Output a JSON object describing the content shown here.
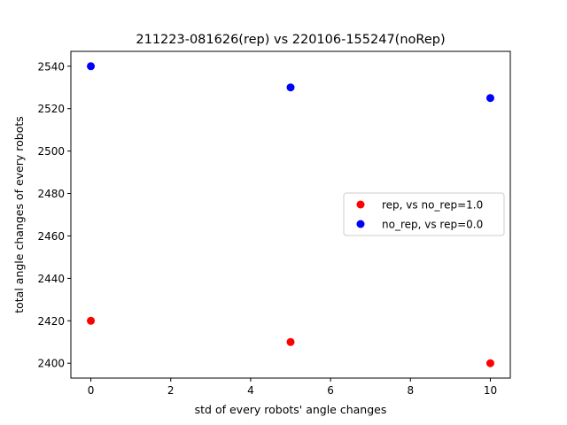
{
  "chart_data": {
    "type": "scatter",
    "title": "211223-081626(rep) vs 220106-155247(noRep)",
    "xlabel": "std of every robots' angle changes",
    "ylabel": "total angle changes of every robots",
    "xlim": [
      -0.5,
      10.5
    ],
    "ylim": [
      2393,
      2547
    ],
    "xticks": [
      0,
      2,
      4,
      6,
      8,
      10
    ],
    "yticks": [
      2400,
      2420,
      2440,
      2460,
      2480,
      2500,
      2520,
      2540
    ],
    "grid": false,
    "legend_position": "center right",
    "series": [
      {
        "name": "rep, vs no_rep=1.0",
        "color": "#ff0000",
        "x": [
          0,
          5,
          10
        ],
        "y": [
          2420,
          2410,
          2400
        ]
      },
      {
        "name": "no_rep, vs rep=0.0",
        "color": "#0000ff",
        "x": [
          0,
          5,
          10
        ],
        "y": [
          2540,
          2530,
          2525
        ]
      }
    ]
  }
}
